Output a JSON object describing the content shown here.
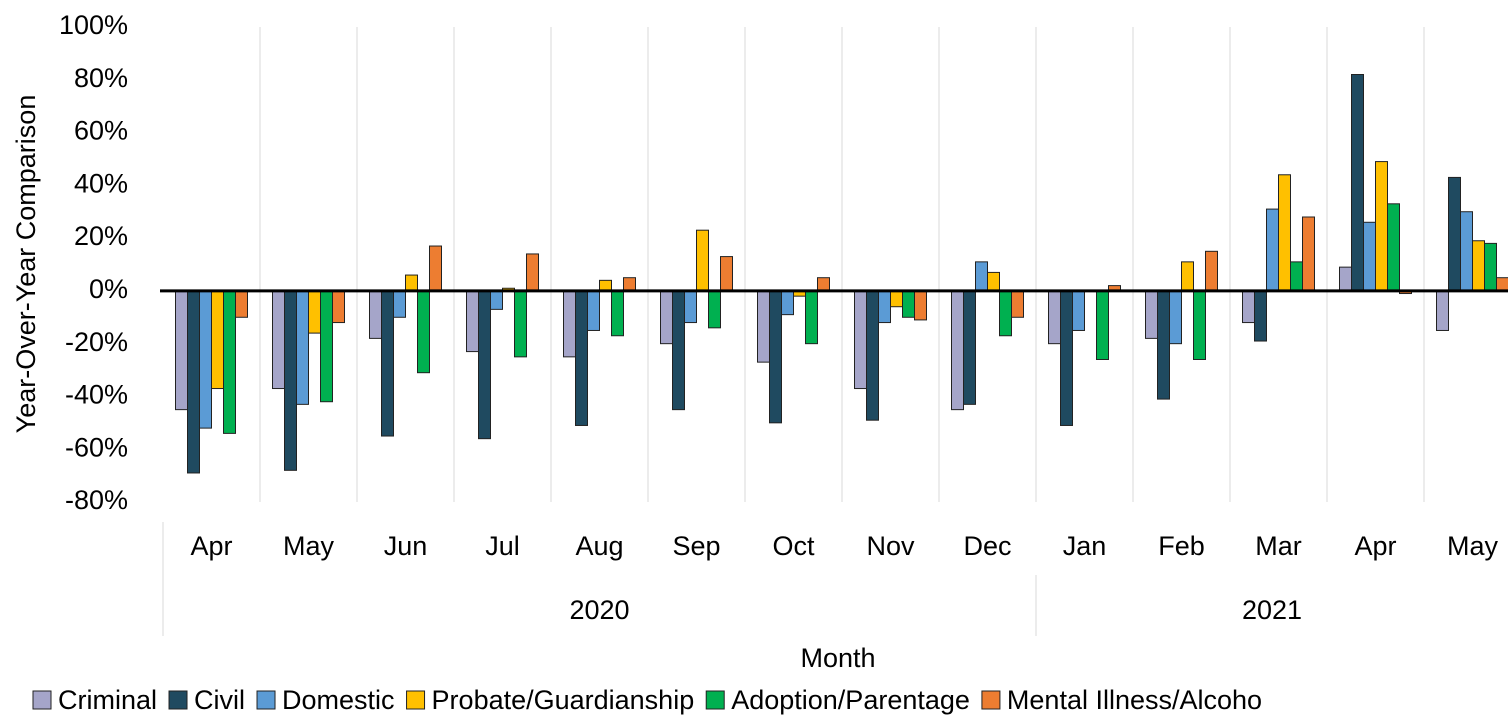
{
  "chart_data": {
    "type": "bar",
    "y_label": "Year-Over-Year Comparison",
    "x_label": "Month",
    "category_groups": [
      {
        "name": "2020",
        "categories": [
          "Apr",
          "May",
          "Jun",
          "Jul",
          "Aug",
          "Sep",
          "Oct",
          "Nov",
          "Dec"
        ]
      },
      {
        "name": "2021",
        "categories": [
          "Jan",
          "Feb",
          "Mar",
          "Apr",
          "May"
        ]
      }
    ],
    "series": [
      {
        "name": "Criminal",
        "color": "#a5a5c9",
        "values": [
          -45,
          -37,
          -18,
          -23,
          -25,
          -20,
          -27,
          -37,
          -45,
          -20,
          -18,
          -12,
          9,
          -15
        ]
      },
      {
        "name": "Civil",
        "color": "#1f4a60",
        "values": [
          -69,
          -68,
          -55,
          -56,
          -51,
          -45,
          -50,
          -49,
          -43,
          -51,
          -41,
          -19,
          82,
          43
        ]
      },
      {
        "name": "Domestic",
        "color": "#5b9bd5",
        "values": [
          -52,
          -43,
          -10,
          -7,
          -15,
          -12,
          -9,
          -12,
          11,
          -15,
          -20,
          31,
          26,
          30
        ]
      },
      {
        "name": "Probate/Guardianship",
        "color": "#ffc000",
        "values": [
          -37,
          -16,
          6,
          1,
          4,
          23,
          -2,
          -6,
          7,
          0,
          11,
          44,
          49,
          19
        ]
      },
      {
        "name": "Adoption/Parentage",
        "color": "#00b050",
        "values": [
          -54,
          -42,
          -31,
          -25,
          -17,
          -14,
          -20,
          -10,
          -17,
          -26,
          -26,
          11,
          33,
          18
        ]
      },
      {
        "name": "Mental Illness/Alcoho",
        "color": "#ed7d31",
        "values": [
          -10,
          -12,
          17,
          14,
          5,
          13,
          5,
          -11,
          -10,
          2,
          15,
          28,
          -1,
          5
        ]
      }
    ],
    "ylim": [
      -80,
      100
    ],
    "yticks": [
      {
        "value": -80,
        "label": "-80%"
      },
      {
        "value": -60,
        "label": "-60%"
      },
      {
        "value": -40,
        "label": "-40%"
      },
      {
        "value": -20,
        "label": "-20%"
      },
      {
        "value": 0,
        "label": "0%"
      },
      {
        "value": 20,
        "label": "20%"
      },
      {
        "value": 40,
        "label": "40%"
      },
      {
        "value": 60,
        "label": "60%"
      },
      {
        "value": 80,
        "label": "80%"
      },
      {
        "value": 100,
        "label": "100%"
      }
    ],
    "grid": false
  }
}
